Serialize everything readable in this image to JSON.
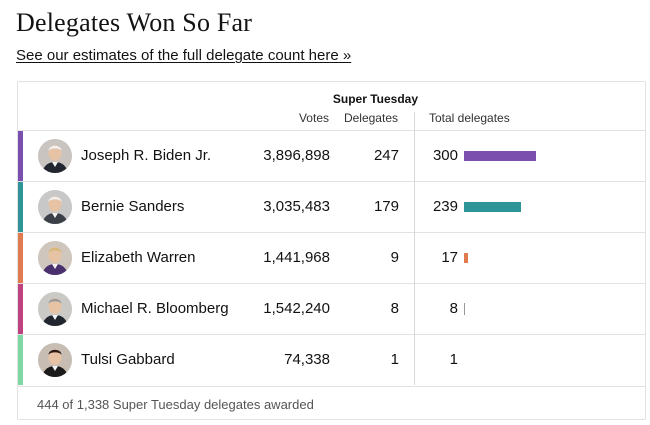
{
  "title": "Delegates Won So Far",
  "link_text": "See our estimates of the full delegate count here »",
  "table": {
    "group_header": "Super Tuesday",
    "col_votes": "Votes",
    "col_delegates": "Delegates",
    "col_total": "Total delegates",
    "total_scale_max": 300,
    "rows": [
      {
        "name": "Joseph R. Biden Jr.",
        "votes": "3,896,898",
        "delegates": "247",
        "total": "300",
        "total_value": 300,
        "color": "#7b4fad",
        "avatar_bg": "#c9c4c0",
        "hair": "#f2f2f2",
        "suit": "#222631"
      },
      {
        "name": "Bernie Sanders",
        "votes": "3,035,483",
        "delegates": "179",
        "total": "239",
        "total_value": 239,
        "color": "#2e9498",
        "avatar_bg": "#c8c8c8",
        "hair": "#f0f0f0",
        "suit": "#3b3f47"
      },
      {
        "name": "Elizabeth Warren",
        "votes": "1,441,968",
        "delegates": "9",
        "total": "17",
        "total_value": 17,
        "color": "#e07b4f",
        "avatar_bg": "#cfc6bd",
        "hair": "#d9b77a",
        "suit": "#4a2f6e"
      },
      {
        "name": "Michael R. Bloomberg",
        "votes": "1,542,240",
        "delegates": "8",
        "total": "8",
        "total_value": 8,
        "color": "#c0417f",
        "avatar_bg": "#cbc9c6",
        "hair": "#9a9a9a",
        "suit": "#20252e"
      },
      {
        "name": "Tulsi Gabbard",
        "votes": "74,338",
        "delegates": "1",
        "total": "1",
        "total_value": 1,
        "color": "#7fd8a4",
        "avatar_bg": "#c7bdb3",
        "hair": "#2a1c14",
        "suit": "#1b1b1b"
      }
    ]
  },
  "footer_text": "444 of 1,338 Super Tuesday delegates awarded"
}
